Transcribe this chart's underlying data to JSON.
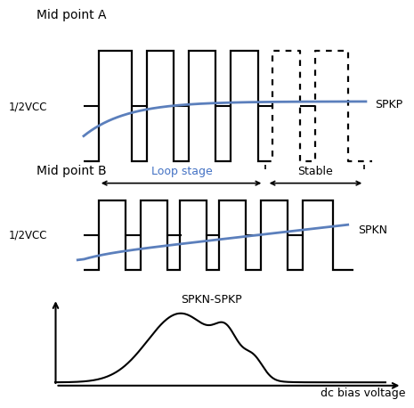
{
  "bg_color": "#ffffff",
  "line_color": "#000000",
  "blue_color": "#5b7fbc",
  "panel_A_title": "Mid point A",
  "panel_B_title": "Mid point B",
  "half_vcc_label": "1/2VCC",
  "spkp_label": "SPKP",
  "spkn_label": "SPKN",
  "loop_label": "Loop stage",
  "stable_label": "Stable",
  "bottom_label": "SPKN-SPKP",
  "xaxis_label": "dc bias voltage",
  "font_size": 10,
  "small_font": 9,
  "ps_A": [
    0.05,
    0.21,
    0.35,
    0.49,
    0.63,
    0.77
  ],
  "pe_A": [
    0.16,
    0.3,
    0.44,
    0.58,
    0.72,
    0.88
  ],
  "ps_B": [
    0.05,
    0.19,
    0.32,
    0.45,
    0.59,
    0.73
  ],
  "pe_B": [
    0.14,
    0.28,
    0.41,
    0.54,
    0.68,
    0.83
  ],
  "dashed_split_A": 0.605,
  "loop_text_color": "#4472c4"
}
